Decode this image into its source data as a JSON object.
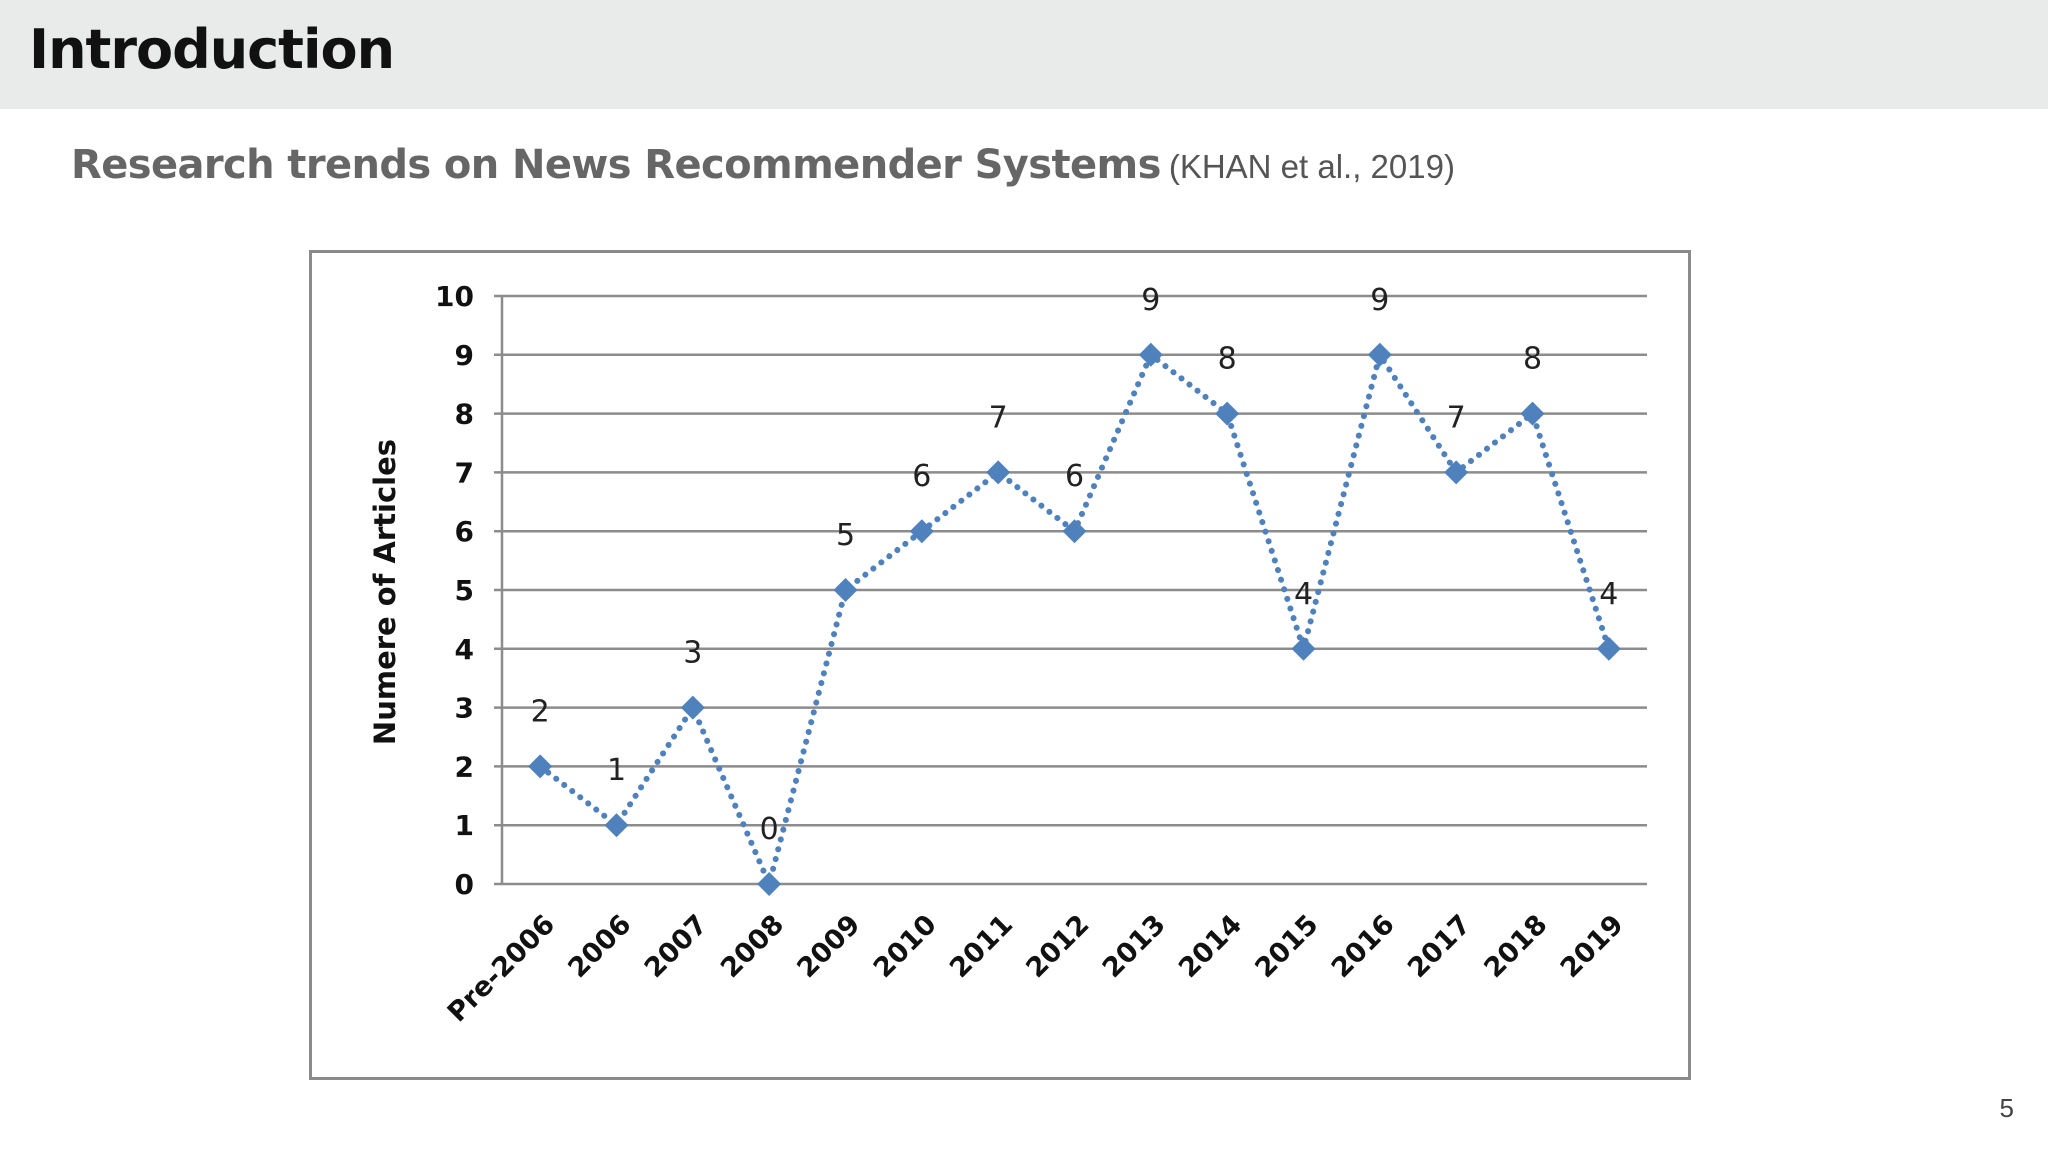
{
  "slide": {
    "title": "Introduction",
    "subtitle": "Research trends on News Recommender Systems",
    "citation": "(KHAN et al., 2019)",
    "page_number": "5"
  },
  "chart_data": {
    "type": "line",
    "title": "",
    "xlabel": "",
    "ylabel": "Numere of Articles",
    "categories": [
      "Pre-2006",
      "2006",
      "2007",
      "2008",
      "2009",
      "2010",
      "2011",
      "2012",
      "2013",
      "2014",
      "2015",
      "2016",
      "2017",
      "2018",
      "2019"
    ],
    "values": [
      2,
      1,
      3,
      0,
      5,
      6,
      7,
      6,
      9,
      8,
      4,
      9,
      7,
      8,
      4
    ],
    "ylim": [
      0,
      10
    ],
    "yticks": [
      0,
      1,
      2,
      3,
      4,
      5,
      6,
      7,
      8,
      9,
      10
    ],
    "grid": true,
    "line_style": "dotted",
    "marker": "diamond",
    "series_color": "#4f81bd",
    "data_labels": true
  }
}
